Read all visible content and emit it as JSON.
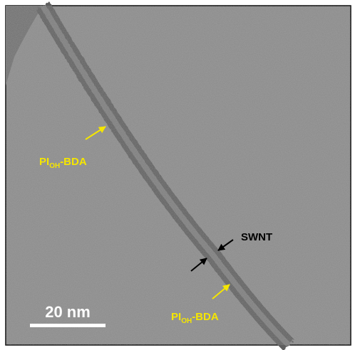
{
  "annotations": [
    {
      "parts": [
        "PI",
        "OH",
        "-BDA"
      ]
    },
    {
      "parts": [
        "SWNT"
      ]
    },
    {
      "parts": [
        "PI",
        "OH",
        "-BDA"
      ]
    }
  ],
  "scale_bar": {
    "label": "20 nm"
  }
}
